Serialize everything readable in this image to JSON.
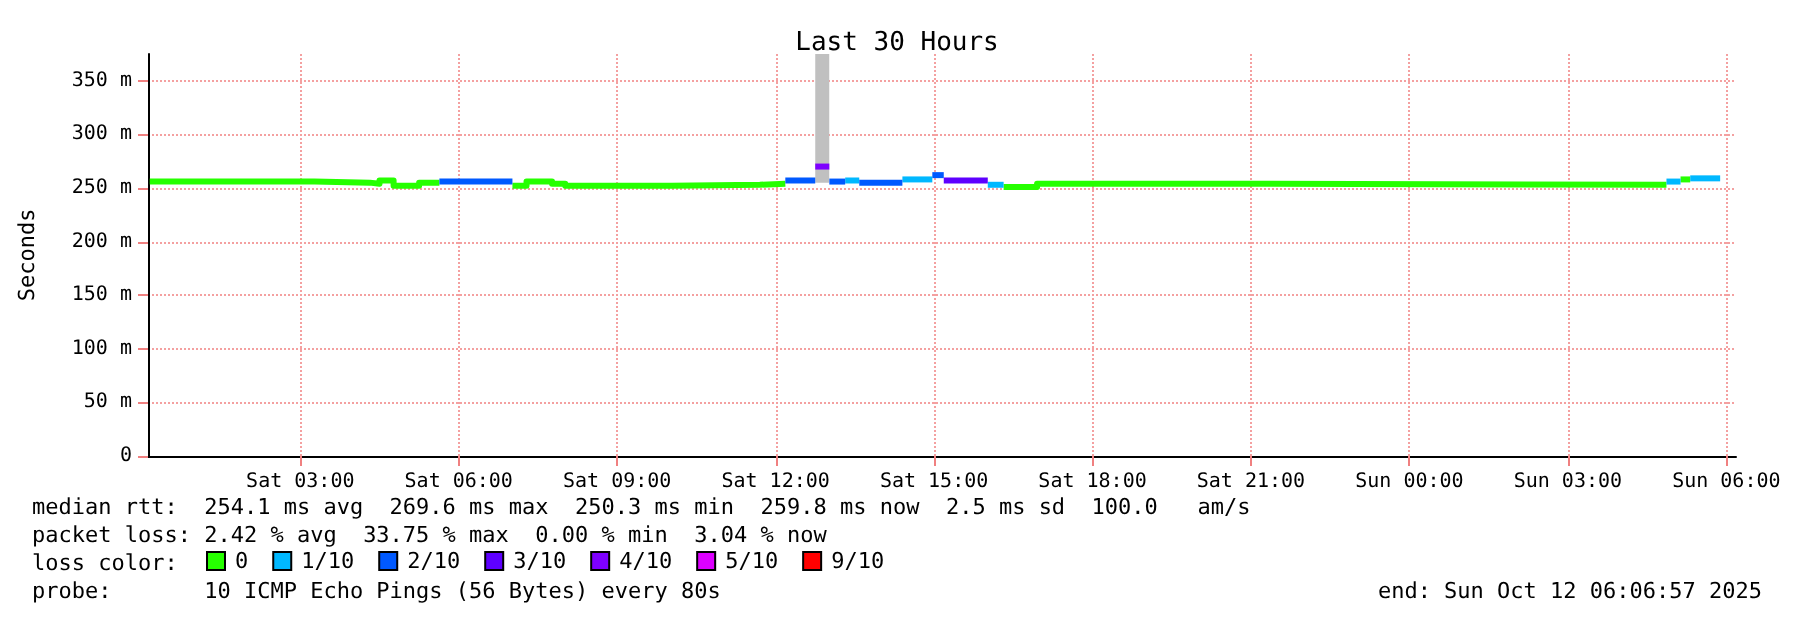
{
  "chart_data": {
    "type": "step",
    "title": "Last 30 Hours",
    "ylabel": "Seconds",
    "legend_title": "loss color:",
    "legend": "bottom",
    "grid": true,
    "marker": "none",
    "xlim": [
      "2025-10-11T00:07",
      "2025-10-12T06:11"
    ],
    "xticks": [
      {
        "value": "2025-10-11T03:00",
        "label": "Sat 03:00"
      },
      {
        "value": "2025-10-11T06:00",
        "label": "Sat 06:00"
      },
      {
        "value": "2025-10-11T09:00",
        "label": "Sat 09:00"
      },
      {
        "value": "2025-10-11T12:00",
        "label": "Sat 12:00"
      },
      {
        "value": "2025-10-11T15:00",
        "label": "Sat 15:00"
      },
      {
        "value": "2025-10-11T18:00",
        "label": "Sat 18:00"
      },
      {
        "value": "2025-10-11T21:00",
        "label": "Sat 21:00"
      },
      {
        "value": "2025-10-12T00:00",
        "label": "Sun 00:00"
      },
      {
        "value": "2025-10-12T03:00",
        "label": "Sun 03:00"
      },
      {
        "value": "2025-10-12T06:00",
        "label": "Sun 06:00"
      }
    ],
    "ylim": [
      0,
      375
    ],
    "yticks": [
      {
        "value": 0,
        "label": "0"
      },
      {
        "value": 50,
        "label": "50 m"
      },
      {
        "value": 100,
        "label": "100 m"
      },
      {
        "value": 150,
        "label": "150 m"
      },
      {
        "value": 200,
        "label": "200 m"
      },
      {
        "value": 250,
        "label": "250 m"
      },
      {
        "value": 300,
        "label": "300 m"
      },
      {
        "value": 350,
        "label": "350 m"
      }
    ],
    "series": [
      {
        "type": "bar",
        "color": "#c0c0c0",
        "x": [
          "2025-10-11T12:45"
        ],
        "base": [
          255
        ],
        "values": [
          120
        ]
      },
      {
        "name": "0",
        "color": "#26ff00",
        "x": [
          "2025-10-11T00:09",
          "2025-10-11T03:16",
          "2025-10-11T04:19",
          "2025-10-11T04:30",
          "2025-10-11T04:46",
          "2025-10-11T05:15",
          "2025-10-11T05:38"
        ],
        "values": [
          256,
          255,
          254,
          257,
          252,
          255,
          255
        ]
      },
      {
        "color": "#26ff00",
        "x": [
          "2025-10-11T07:01",
          "2025-10-11T07:17",
          "2025-10-11T07:46",
          "2025-10-11T08:01",
          "2025-10-11T10:01",
          "2025-10-11T11:42",
          "2025-10-11T12:11"
        ],
        "values": [
          252,
          256,
          254,
          252,
          253,
          254,
          254
        ]
      },
      {
        "color": "#26ff00",
        "x": [
          "2025-10-11T16:19",
          "2025-10-11T16:57",
          "2025-10-11T20:08",
          "2025-10-12T04:52"
        ],
        "values": [
          251,
          254,
          253,
          253
        ]
      },
      {
        "color": "#26ff00",
        "x": [
          "2025-10-12T05:08",
          "2025-10-12T05:19"
        ],
        "values": [
          258,
          258
        ]
      },
      {
        "name": "1/10",
        "color": "#00b8ff",
        "x": [
          "2025-10-11T13:19",
          "2025-10-11T13:35"
        ],
        "values": [
          257,
          257
        ]
      },
      {
        "color": "#00b8ff",
        "x": [
          "2025-10-11T14:24",
          "2025-10-11T14:58"
        ],
        "values": [
          258,
          258
        ]
      },
      {
        "color": "#00b8ff",
        "x": [
          "2025-10-11T16:01",
          "2025-10-11T16:19"
        ],
        "values": [
          253,
          253
        ]
      },
      {
        "color": "#00b8ff",
        "x": [
          "2025-10-12T04:52",
          "2025-10-12T05:08"
        ],
        "values": [
          256,
          256
        ]
      },
      {
        "color": "#00b8ff",
        "x": [
          "2025-10-12T05:19",
          "2025-10-12T05:53"
        ],
        "values": [
          259,
          259
        ]
      },
      {
        "name": "2/10",
        "color": "#0059ff",
        "x": [
          "2025-10-11T05:38",
          "2025-10-11T07:01"
        ],
        "values": [
          256,
          256
        ]
      },
      {
        "color": "#0059ff",
        "x": [
          "2025-10-11T12:11",
          "2025-10-11T12:45"
        ],
        "values": [
          257,
          257
        ]
      },
      {
        "color": "#0059ff",
        "x": [
          "2025-10-11T13:01",
          "2025-10-11T13:19"
        ],
        "values": [
          256,
          256
        ]
      },
      {
        "color": "#0059ff",
        "x": [
          "2025-10-11T13:35",
          "2025-10-11T14:24"
        ],
        "values": [
          255,
          255
        ]
      },
      {
        "color": "#0059ff",
        "x": [
          "2025-10-11T14:58",
          "2025-10-11T15:11"
        ],
        "values": [
          262,
          262
        ]
      },
      {
        "name": "3/10",
        "color": "#5e00ff",
        "x": [
          "2025-10-11T15:11",
          "2025-10-11T16:01"
        ],
        "values": [
          257,
          257
        ]
      },
      {
        "name": "4/10",
        "color": "#7e00ff",
        "x": [
          "2025-10-11T12:45",
          "2025-10-11T13:01"
        ],
        "values": [
          270,
          270
        ]
      },
      {
        "name": "5/10",
        "color": "#dd00ff"
      },
      {
        "name": "9/10",
        "color": "#ff0000"
      }
    ],
    "annotations": [
      "median rtt:  254.1 ms avg  269.6 ms max  250.3 ms min  259.8 ms now  2.5 ms sd  100.0   am/s",
      "packet loss: 2.42 % avg  33.75 % max  0.00 % min  3.04 % now",
      "probe:       10 ICMP Echo Pings (56 Bytes) every 80s",
      "end: Sun Oct 12 06:06:57 2025"
    ]
  }
}
